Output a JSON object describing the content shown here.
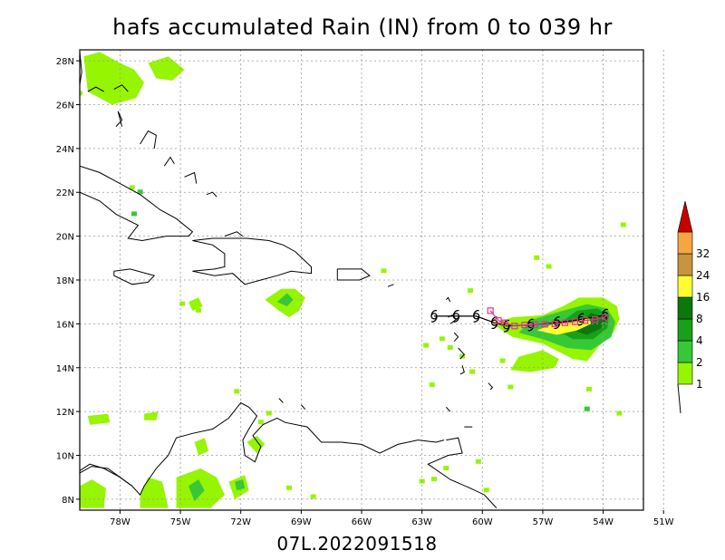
{
  "title": "hafs accumulated Rain (IN) from 0 to 039 hr",
  "footer": "07L.2022091518",
  "chart_data": {
    "type": "map",
    "variable": "accumulated rain",
    "units": "IN",
    "lon_range": [
      -80,
      -52
    ],
    "lat_range": [
      7.5,
      28.5
    ],
    "grid": true,
    "x_ticks": [
      {
        "value": -78,
        "label": "78W"
      },
      {
        "value": -75,
        "label": "75W"
      },
      {
        "value": -72,
        "label": "72W"
      },
      {
        "value": -69,
        "label": "69W"
      },
      {
        "value": -66,
        "label": "66W"
      },
      {
        "value": -63,
        "label": "63W"
      },
      {
        "value": -60,
        "label": "60W"
      },
      {
        "value": -57,
        "label": "57W"
      },
      {
        "value": -54,
        "label": "54W"
      },
      {
        "value": -51,
        "label": "51W"
      }
    ],
    "y_ticks": [
      {
        "value": 8,
        "label": "8N"
      },
      {
        "value": 10,
        "label": "10N"
      },
      {
        "value": 12,
        "label": "12N"
      },
      {
        "value": 14,
        "label": "14N"
      },
      {
        "value": 16,
        "label": "16N"
      },
      {
        "value": 18,
        "label": "18N"
      },
      {
        "value": 20,
        "label": "20N"
      },
      {
        "value": 22,
        "label": "22N"
      },
      {
        "value": 24,
        "label": "24N"
      },
      {
        "value": 26,
        "label": "26N"
      },
      {
        "value": 28,
        "label": "28N"
      }
    ],
    "colorbar": {
      "labels": [
        "1",
        "2",
        "4",
        "8",
        "16",
        "24",
        "32"
      ],
      "colors": [
        "#96f500",
        "#37c837",
        "#18a018",
        "#0a780a",
        "#fefe32",
        "#c8943c",
        "#f4a640",
        "#c80000"
      ]
    },
    "track_hafs": {
      "color": "#e0348e",
      "points": [
        [
          -53.9,
          16.3
        ],
        [
          -54.4,
          16.2
        ],
        [
          -54.9,
          16.15
        ],
        [
          -55.4,
          16.1
        ],
        [
          -55.9,
          16.05
        ],
        [
          -56.4,
          16.0
        ],
        [
          -56.9,
          15.98
        ],
        [
          -57.4,
          15.97
        ],
        [
          -57.9,
          15.95
        ],
        [
          -58.4,
          15.9
        ],
        [
          -58.9,
          16.05
        ],
        [
          -59.2,
          16.15
        ],
        [
          -59.6,
          16.6
        ]
      ]
    },
    "track_obs": {
      "color": "#000000",
      "points": [
        [
          -53.9,
          16.4
        ],
        [
          -55.1,
          16.2
        ],
        [
          -56.3,
          16.05
        ],
        [
          -57.6,
          15.95
        ],
        [
          -58.8,
          15.9
        ],
        [
          -59.4,
          16.05
        ],
        [
          -60.3,
          16.35
        ],
        [
          -61.3,
          16.35
        ],
        [
          -62.4,
          16.35
        ]
      ]
    },
    "rain_areas": [
      {
        "amount": 1,
        "poly": [
          [
            -59.5,
            16.0
          ],
          [
            -58.5,
            15.4
          ],
          [
            -57.0,
            15.1
          ],
          [
            -55.5,
            14.4
          ],
          [
            -54.8,
            14.3
          ],
          [
            -54.2,
            15.0
          ],
          [
            -53.5,
            15.6
          ],
          [
            -53.2,
            16.2
          ],
          [
            -53.3,
            16.8
          ],
          [
            -54.0,
            17.2
          ],
          [
            -55.2,
            17.2
          ],
          [
            -56.0,
            16.8
          ],
          [
            -57.0,
            16.4
          ],
          [
            -58.5,
            16.3
          ]
        ]
      },
      {
        "amount": 2,
        "poly": [
          [
            -58.2,
            15.6
          ],
          [
            -57.0,
            15.3
          ],
          [
            -55.8,
            14.9
          ],
          [
            -54.6,
            14.8
          ],
          [
            -53.6,
            15.4
          ],
          [
            -53.4,
            16.1
          ],
          [
            -53.8,
            16.7
          ],
          [
            -54.8,
            16.9
          ],
          [
            -56.0,
            16.6
          ],
          [
            -57.5,
            16.2
          ]
        ]
      },
      {
        "amount": 4,
        "poly": [
          [
            -56.5,
            15.8
          ],
          [
            -55.5,
            15.3
          ],
          [
            -54.5,
            15.3
          ],
          [
            -53.8,
            15.8
          ],
          [
            -53.7,
            16.4
          ],
          [
            -54.3,
            16.7
          ],
          [
            -55.3,
            16.6
          ]
        ]
      },
      {
        "amount": 8,
        "poly": [
          [
            -55.5,
            15.7
          ],
          [
            -54.8,
            15.5
          ],
          [
            -54.1,
            15.8
          ],
          [
            -54.0,
            16.3
          ],
          [
            -54.6,
            16.5
          ]
        ]
      },
      {
        "amount": 16,
        "poly": [
          [
            -57.3,
            15.7
          ],
          [
            -56.3,
            15.5
          ],
          [
            -55.3,
            15.7
          ],
          [
            -54.6,
            16.0
          ],
          [
            -54.7,
            16.3
          ],
          [
            -55.6,
            16.1
          ],
          [
            -56.6,
            15.95
          ]
        ]
      },
      {
        "amount": 1,
        "poly": [
          [
            -70.8,
            17.1
          ],
          [
            -70.1,
            16.6
          ],
          [
            -69.6,
            16.3
          ],
          [
            -69.1,
            16.6
          ],
          [
            -68.8,
            17.2
          ],
          [
            -69.3,
            17.6
          ],
          [
            -70.0,
            17.6
          ]
        ]
      },
      {
        "amount": 2,
        "poly": [
          [
            -70.2,
            17.0
          ],
          [
            -69.7,
            16.8
          ],
          [
            -69.4,
            17.1
          ],
          [
            -69.7,
            17.4
          ]
        ]
      },
      {
        "amount": 1,
        "poly": [
          [
            -77.0,
            8.2
          ],
          [
            -76.6,
            9.0
          ],
          [
            -75.9,
            8.8
          ],
          [
            -75.6,
            7.6
          ],
          [
            -77.0,
            7.6
          ]
        ]
      },
      {
        "amount": 1,
        "poly": [
          [
            -75.2,
            9.0
          ],
          [
            -74.0,
            9.4
          ],
          [
            -73.2,
            9.0
          ],
          [
            -72.8,
            8.2
          ],
          [
            -73.5,
            7.6
          ],
          [
            -75.2,
            7.6
          ]
        ]
      },
      {
        "amount": 2,
        "poly": [
          [
            -74.6,
            8.6
          ],
          [
            -74.1,
            8.9
          ],
          [
            -73.8,
            8.4
          ],
          [
            -74.3,
            7.9
          ]
        ]
      },
      {
        "amount": 1,
        "poly": [
          [
            -72.6,
            8.8
          ],
          [
            -71.8,
            9.1
          ],
          [
            -71.6,
            8.4
          ],
          [
            -72.3,
            8.0
          ]
        ]
      },
      {
        "amount": 2,
        "poly": [
          [
            -72.3,
            8.8
          ],
          [
            -71.9,
            8.9
          ],
          [
            -71.8,
            8.5
          ],
          [
            -72.2,
            8.4
          ]
        ]
      },
      {
        "amount": 1,
        "poly": [
          [
            -80.0,
            8.6
          ],
          [
            -79.4,
            8.9
          ],
          [
            -78.7,
            8.5
          ],
          [
            -78.8,
            7.6
          ],
          [
            -80.0,
            7.6
          ]
        ]
      },
      {
        "amount": 1,
        "poly": [
          [
            -79.8,
            28.2
          ],
          [
            -79.0,
            28.4
          ],
          [
            -78.0,
            27.9
          ],
          [
            -77.3,
            27.6
          ],
          [
            -76.8,
            27.0
          ],
          [
            -77.2,
            26.3
          ],
          [
            -78.4,
            26.0
          ],
          [
            -79.6,
            26.6
          ]
        ]
      },
      {
        "amount": 1,
        "poly": [
          [
            -76.6,
            27.9
          ],
          [
            -75.6,
            28.2
          ],
          [
            -74.8,
            27.6
          ],
          [
            -75.4,
            27.1
          ],
          [
            -76.2,
            27.2
          ]
        ]
      },
      {
        "amount": 1,
        "poly": [
          [
            -79.6,
            11.8
          ],
          [
            -78.6,
            11.9
          ],
          [
            -78.5,
            11.5
          ],
          [
            -79.5,
            11.4
          ]
        ]
      },
      {
        "amount": 1,
        "poly": [
          [
            -76.8,
            11.9
          ],
          [
            -76.1,
            12.0
          ],
          [
            -76.2,
            11.6
          ],
          [
            -76.8,
            11.6
          ]
        ]
      },
      {
        "amount": 1,
        "poly": [
          [
            -58.2,
            14.5
          ],
          [
            -57.0,
            14.8
          ],
          [
            -56.2,
            14.4
          ],
          [
            -56.4,
            14.0
          ],
          [
            -57.6,
            13.8
          ],
          [
            -58.6,
            13.9
          ]
        ]
      },
      {
        "amount": 1,
        "poly": [
          [
            -74.6,
            17.0
          ],
          [
            -74.1,
            17.2
          ],
          [
            -73.9,
            16.8
          ],
          [
            -74.4,
            16.6
          ]
        ]
      },
      {
        "amount": 1,
        "poly": [
          [
            -71.7,
            10.6
          ],
          [
            -71.2,
            10.9
          ],
          [
            -70.8,
            10.5
          ],
          [
            -71.2,
            10.1
          ]
        ]
      },
      {
        "amount": 1,
        "poly": [
          [
            -74.3,
            10.6
          ],
          [
            -73.8,
            10.8
          ],
          [
            -73.6,
            10.2
          ],
          [
            -74.1,
            10.0
          ]
        ]
      }
    ],
    "rain_dots": [
      {
        "amount": 1,
        "p": [
          -80.0,
          26.5
        ]
      },
      {
        "amount": 1,
        "p": [
          -78.0,
          26.2
        ]
      },
      {
        "amount": 1,
        "p": [
          -77.4,
          22.2
        ]
      },
      {
        "amount": 2,
        "p": [
          -77.0,
          22.0
        ]
      },
      {
        "amount": 2,
        "p": [
          -77.3,
          21.0
        ]
      },
      {
        "amount": 1,
        "p": [
          -64.9,
          18.4
        ]
      },
      {
        "amount": 1,
        "p": [
          -74.9,
          16.9
        ]
      },
      {
        "amount": 1,
        "p": [
          -74.1,
          16.6
        ]
      },
      {
        "amount": 1,
        "p": [
          -60.6,
          17.5
        ]
      },
      {
        "amount": 1,
        "p": [
          -57.3,
          19.0
        ]
      },
      {
        "amount": 1,
        "p": [
          -56.7,
          18.6
        ]
      },
      {
        "amount": 1,
        "p": [
          -53.0,
          20.5
        ]
      },
      {
        "amount": 1,
        "p": [
          -62.0,
          15.3
        ]
      },
      {
        "amount": 1,
        "p": [
          -61.6,
          14.9
        ]
      },
      {
        "amount": 1,
        "p": [
          -61.0,
          14.5
        ]
      },
      {
        "amount": 1,
        "p": [
          -62.8,
          15.0
        ]
      },
      {
        "amount": 1,
        "p": [
          -59.0,
          14.3
        ]
      },
      {
        "amount": 1,
        "p": [
          -60.5,
          13.8
        ]
      },
      {
        "amount": 1,
        "p": [
          -62.5,
          13.2
        ]
      },
      {
        "amount": 1,
        "p": [
          -54.7,
          13.0
        ]
      },
      {
        "amount": 2,
        "p": [
          -54.8,
          12.1
        ]
      },
      {
        "amount": 1,
        "p": [
          -53.2,
          11.9
        ]
      },
      {
        "amount": 1,
        "p": [
          -58.6,
          13.1
        ]
      },
      {
        "amount": 1,
        "p": [
          -61.8,
          9.4
        ]
      },
      {
        "amount": 1,
        "p": [
          -62.4,
          8.9
        ]
      },
      {
        "amount": 1,
        "p": [
          -63.0,
          8.8
        ]
      },
      {
        "amount": 1,
        "p": [
          -60.2,
          9.7
        ]
      },
      {
        "amount": 1,
        "p": [
          -59.8,
          8.4
        ]
      },
      {
        "amount": 1,
        "p": [
          -69.6,
          8.5
        ]
      },
      {
        "amount": 1,
        "p": [
          -68.4,
          8.1
        ]
      },
      {
        "amount": 1,
        "p": [
          -51.2,
          9.8
        ]
      },
      {
        "amount": 1,
        "p": [
          -72.2,
          12.9
        ]
      },
      {
        "amount": 1,
        "p": [
          -71.0,
          11.5
        ]
      },
      {
        "amount": 1,
        "p": [
          -70.6,
          11.9
        ]
      }
    ]
  }
}
